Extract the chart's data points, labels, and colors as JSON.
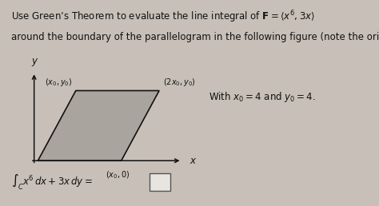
{
  "bg_outer": "#c8c0b8",
  "bg_inner": "#ddd8d0",
  "text_color": "#111111",
  "title_line1": "Use Green’s Theorem to evaluate the line integral of $\\mathbf{F} = \\langle x^6, 3x\\rangle$",
  "title_line2": "around the boundary of the parallelogram in the following figure (note the orientation).",
  "with_text": "With $x_0 = 4$ and $y_0 = 4$.",
  "integral_text": "$\\int_C x^6\\,dx + 3x\\,dy = $",
  "label_tl": "$(x_0, y_0)$",
  "label_tr": "$(2x_0, y_0)$",
  "label_bot": "$(x_0, 0)$",
  "para_fill": "#aaa49e",
  "para_edge": "#111111",
  "para_lw": 1.2,
  "axis_color": "#111111",
  "font_size_main": 8.5,
  "font_size_label": 7.0,
  "font_size_integral": 8.5,
  "font_size_axis": 8.5
}
